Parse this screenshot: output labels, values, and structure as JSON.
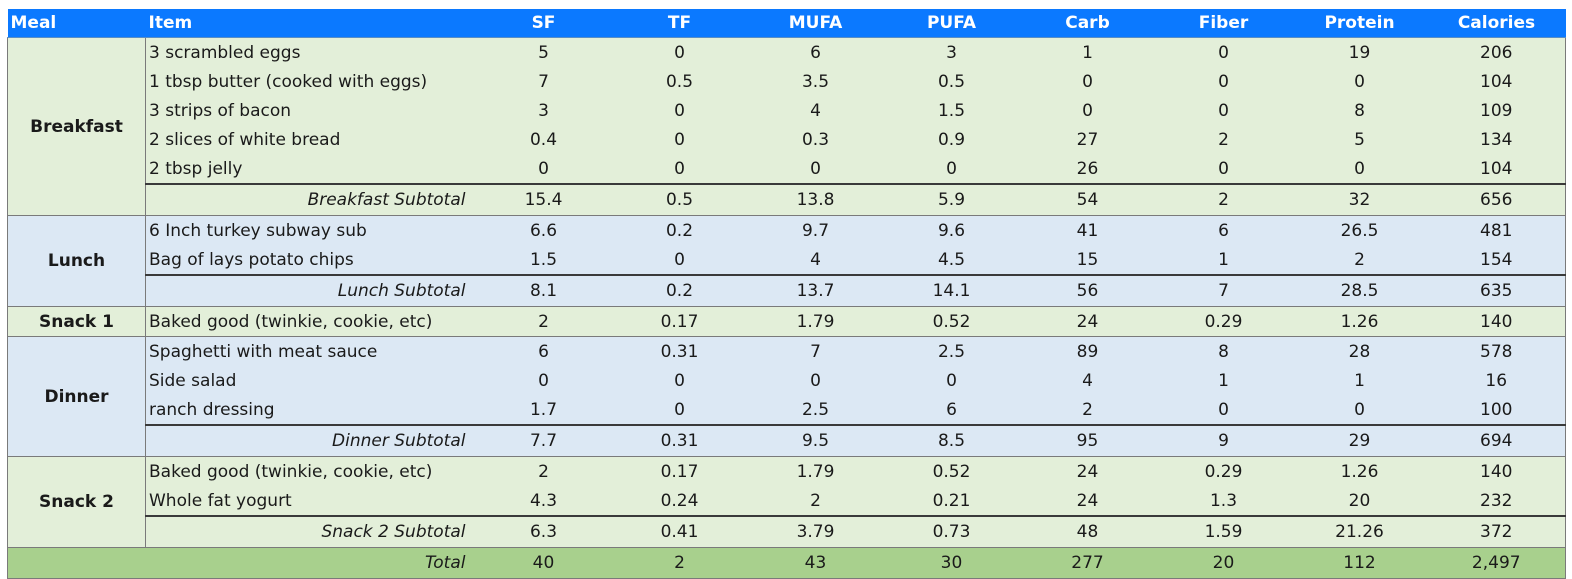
{
  "table": {
    "columns": [
      "Meal",
      "Item",
      "SF",
      "TF",
      "MUFA",
      "PUFA",
      "Carb",
      "Fiber",
      "Protein",
      "Calories"
    ],
    "colors": {
      "header_bg": "#0b79ff",
      "header_text": "#ffffff",
      "green_row": "#e3efd9",
      "blue_row": "#dce8f4",
      "total_row": "#a8d08d"
    },
    "groups": [
      {
        "meal": "Breakfast",
        "theme": "green",
        "items": [
          {
            "name": "3 scrambled eggs",
            "values": [
              "5",
              "0",
              "6",
              "3",
              "1",
              "0",
              "19",
              "206"
            ]
          },
          {
            "name": "1 tbsp butter (cooked with eggs)",
            "values": [
              "7",
              "0.5",
              "3.5",
              "0.5",
              "0",
              "0",
              "0",
              "104"
            ]
          },
          {
            "name": "3 strips of bacon",
            "values": [
              "3",
              "0",
              "4",
              "1.5",
              "0",
              "0",
              "8",
              "109"
            ]
          },
          {
            "name": "2 slices of white bread",
            "values": [
              "0.4",
              "0",
              "0.3",
              "0.9",
              "27",
              "2",
              "5",
              "134"
            ]
          },
          {
            "name": "2 tbsp jelly",
            "values": [
              "0",
              "0",
              "0",
              "0",
              "26",
              "0",
              "0",
              "104"
            ]
          }
        ],
        "subtotal": {
          "label": "Breakfast Subtotal",
          "values": [
            "15.4",
            "0.5",
            "13.8",
            "5.9",
            "54",
            "2",
            "32",
            "656"
          ]
        }
      },
      {
        "meal": "Lunch",
        "theme": "blue",
        "items": [
          {
            "name": "6 Inch turkey subway sub",
            "values": [
              "6.6",
              "0.2",
              "9.7",
              "9.6",
              "41",
              "6",
              "26.5",
              "481"
            ]
          },
          {
            "name": "Bag of lays potato chips",
            "values": [
              "1.5",
              "0",
              "4",
              "4.5",
              "15",
              "1",
              "2",
              "154"
            ]
          }
        ],
        "subtotal": {
          "label": "Lunch Subtotal",
          "values": [
            "8.1",
            "0.2",
            "13.7",
            "14.1",
            "56",
            "7",
            "28.5",
            "635"
          ]
        }
      },
      {
        "meal": "Snack 1",
        "theme": "green",
        "items": [
          {
            "name": "Baked good (twinkie, cookie, etc)",
            "values": [
              "2",
              "0.17",
              "1.79",
              "0.52",
              "24",
              "0.29",
              "1.26",
              "140"
            ]
          }
        ]
      },
      {
        "meal": "Dinner",
        "theme": "blue",
        "items": [
          {
            "name": "Spaghetti with meat sauce",
            "values": [
              "6",
              "0.31",
              "7",
              "2.5",
              "89",
              "8",
              "28",
              "578"
            ]
          },
          {
            "name": "Side salad",
            "values": [
              "0",
              "0",
              "0",
              "0",
              "4",
              "1",
              "1",
              "16"
            ]
          },
          {
            "name": "ranch dressing",
            "values": [
              "1.7",
              "0",
              "2.5",
              "6",
              "2",
              "0",
              "0",
              "100"
            ]
          }
        ],
        "subtotal": {
          "label": "Dinner Subtotal",
          "values": [
            "7.7",
            "0.31",
            "9.5",
            "8.5",
            "95",
            "9",
            "29",
            "694"
          ]
        }
      },
      {
        "meal": "Snack 2",
        "theme": "green",
        "items": [
          {
            "name": "Baked good (twinkie, cookie, etc)",
            "values": [
              "2",
              "0.17",
              "1.79",
              "0.52",
              "24",
              "0.29",
              "1.26",
              "140"
            ]
          },
          {
            "name": "Whole fat yogurt",
            "values": [
              "4.3",
              "0.24",
              "2",
              "0.21",
              "24",
              "1.3",
              "20",
              "232"
            ]
          }
        ],
        "subtotal": {
          "label": "Snack 2 Subtotal",
          "values": [
            "6.3",
            "0.41",
            "3.79",
            "0.73",
            "48",
            "1.59",
            "21.26",
            "372"
          ]
        }
      }
    ],
    "total": {
      "label": "Total",
      "values": [
        "40",
        "2",
        "43",
        "30",
        "277",
        "20",
        "112",
        "2,497"
      ]
    }
  }
}
